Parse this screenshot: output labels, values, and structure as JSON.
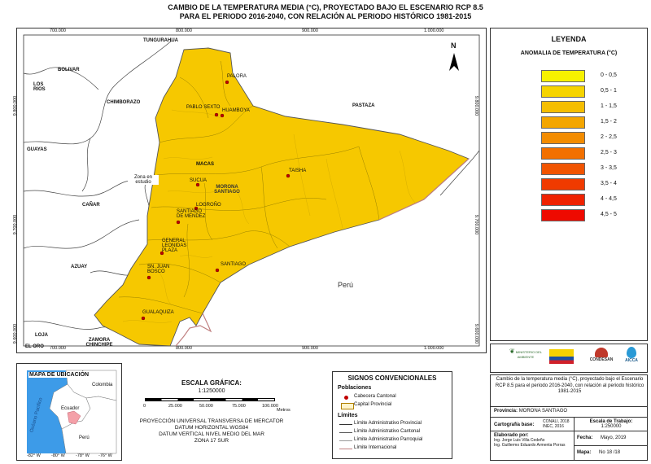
{
  "title_line1": "CAMBIO DE LA TEMPERATURA MEDIA (°C),  PROYECTADO BAJO EL ESCENARIO RCP 8.5",
  "title_line2": "PARA EL PERIODO 2016-2040, CON RELACIÓN AL PERIODO HISTÓRICO 1981-2015",
  "coords_top": [
    "700.000",
    "800.000",
    "900.000",
    "1.000.000"
  ],
  "coords_left": [
    "9.800.000",
    "9.700.000",
    "9.600.000"
  ],
  "regions": {
    "tungurahua": "TUNGURAHUA",
    "bolivar": "BOLIVAR",
    "los_rios": "LOS RIOS",
    "chimborazo": "CHIMBORAZO",
    "guayas": "GUAYAS",
    "canar": "CAÑAR",
    "azuay": "AZUAY",
    "loja": "LOJA",
    "el_oro": "EL ORO",
    "zamora": "ZAMORA CHINCHIPE",
    "pastaza": "PASTAZA",
    "peru": "Perú",
    "zona_estudio": "Zona en estudio",
    "morona": "MORONA SANTIAGO"
  },
  "cities": {
    "palora": "PALORA",
    "pablo_sexto": "PABLO SEXTO",
    "huamboya": "HUAMBOYA",
    "macas": "MACAS",
    "sucua": "SUCUA",
    "taisha": "TAISHA",
    "logrono": "LOGROÑO",
    "santiago_mendez": "SANTIAGO DE MENDEZ",
    "general_plaza": "GENERAL LEONIDAS PLAZA",
    "san_juan_bosco": "SN. JUAN BOSCO",
    "santiago": "SANTIAGO",
    "gualaquiza": "GUALAQUIZA"
  },
  "north": "N",
  "legend": {
    "title": "LEYENDA",
    "subtitle": "ANOMALIA DE TEMPERATURA (°C)",
    "items": [
      {
        "label": "0 - 0,5",
        "color": "#f7f200"
      },
      {
        "label": "0,5 - 1",
        "color": "#f6d400"
      },
      {
        "label": "1 - 1,5",
        "color": "#f5be00"
      },
      {
        "label": "1,5 - 2",
        "color": "#f4a600"
      },
      {
        "label": "2 - 2,5",
        "color": "#f38c00"
      },
      {
        "label": "2,5 - 3",
        "color": "#f27000"
      },
      {
        "label": "3 - 3,5",
        "color": "#f15400"
      },
      {
        "label": "3,5 - 4",
        "color": "#f03a00"
      },
      {
        "label": "4 - 4,5",
        "color": "#ef2200"
      },
      {
        "label": "4,5 - 5",
        "color": "#ee0a00"
      }
    ]
  },
  "location": {
    "title": "MAPA DE UBICACIÓN",
    "colombia": "Colombia",
    "ecuador": "Ecuador",
    "peru": "Perú",
    "ocean": "Océano Pacífico",
    "lons": [
      "-82° W",
      "-80° W",
      "-78° W",
      "-76° W"
    ]
  },
  "scale": {
    "title": "ESCALA GRÁFICA:",
    "ratio": "1:1250000",
    "ticks": [
      "0",
      "25.000",
      "50.000",
      "75.000",
      "100.000"
    ],
    "unit": "Metros"
  },
  "projection": [
    "PROYECCIÓN UNIVERSAL TRANSVERSA DE MERCATOR",
    "DATUM HORIZONTAL WGS84",
    "DATUM VERTICAL NIVEL MEDIO DEL MAR",
    "ZONA 17 SUR"
  ],
  "signs": {
    "title": "SIGNOS CONVENCIONALES",
    "pob_title": "Poblaciones",
    "cabecera": "Cabecera Cantonal",
    "capital": "Capital Provincial",
    "lim_title": "Límites",
    "provincial": "Límite Administrativo Provincial",
    "cantonal": "Límite Administrativo Cantonal",
    "parroquial": "Límite Administrativo Parroquial",
    "internacional": "Límite Internacional"
  },
  "logos": {
    "ministerio": "MINISTERIO DEL AMBIENTE",
    "condesan": "CONDESAN",
    "aicca": "AICCA"
  },
  "info": {
    "description": "Cambio de la temperatura media (°C),  proyectado bajo el Escenario RCP 8.5 para el periodo 2016-2040, con relación al periodo histórico 1981-2015",
    "provincia_label": "Provincia:",
    "provincia": "MORONA SANTIAGO",
    "carto_label": "Cartografía base:",
    "carto1": "CONALI, 2018",
    "carto2": "INEC, 2016",
    "escala_label": "Escala de Trabajo:",
    "escala": "1:250000",
    "elaborado_label": "Elaborado por:",
    "autor1": "Ing. Jorge Luis Villa Cedeño",
    "autor2": "Ing. Guillermo Eduardo Armenta Porras",
    "fecha_label": "Fecha:",
    "fecha": "Mayo, 2019",
    "mapa_label": "Mapa:",
    "mapa": "No 18 /18"
  }
}
